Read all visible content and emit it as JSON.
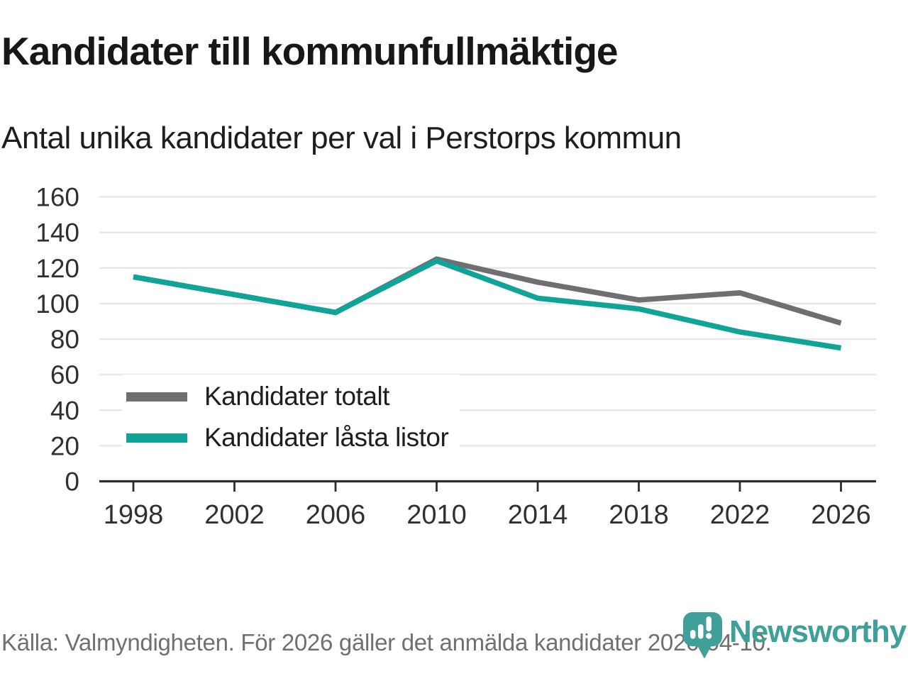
{
  "header": {
    "title": "Kandidater till kommunfullmäktige",
    "subtitle": "Antal unika kandidater per val i Perstorps kommun"
  },
  "chart_data": {
    "type": "line",
    "categories": [
      "1998",
      "2002",
      "2006",
      "2010",
      "2014",
      "2018",
      "2022",
      "2026"
    ],
    "series": [
      {
        "name": "Kandidater totalt",
        "color": "#6e6e73",
        "values": [
          115,
          105,
          95,
          125,
          112,
          102,
          106,
          89
        ]
      },
      {
        "name": "Kandidater låsta listor",
        "color": "#10a397",
        "values": [
          115,
          105,
          95,
          124,
          103,
          97,
          84,
          75
        ]
      }
    ],
    "title": "Kandidater till kommunfullmäktige",
    "subtitle": "Antal unika kandidater per val i Perstorps kommun",
    "xlabel": "",
    "ylabel": "",
    "ylim": [
      0,
      160
    ],
    "yticks": [
      0,
      20,
      40,
      60,
      80,
      100,
      120,
      140,
      160
    ],
    "grid": "horizontal",
    "gridline_color": "#e7e7e7",
    "axis_color": "#2d2d2d",
    "tick_label_color": "#303030",
    "legend_position": "inside-bottom-left"
  },
  "footer": {
    "source": "Källa: Valmyndigheten. För 2026 gäller det anmälda kandidater 2026-04-10."
  },
  "logo": {
    "brand": "Newsworthy",
    "color": "#3f9f99",
    "icon": "newsworthy-pin-barchart-icon"
  }
}
